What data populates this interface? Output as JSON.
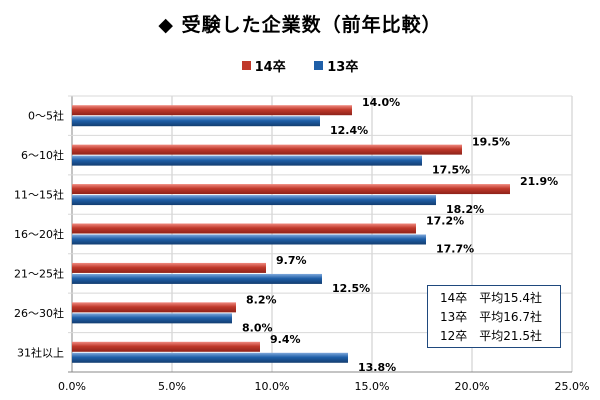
{
  "chart_data": {
    "type": "bar",
    "orientation": "horizontal",
    "title": "◆ 受験した企業数（前年比較）",
    "categories": [
      "0～5社",
      "6～10社",
      "11～15社",
      "16～20社",
      "21～25社",
      "26～30社",
      "31社以上"
    ],
    "series": [
      {
        "name": "14卒",
        "color": "#c0392b",
        "values": [
          14.0,
          19.5,
          21.9,
          17.2,
          9.7,
          8.2,
          9.4
        ],
        "labels": [
          "14.0%",
          "19.5%",
          "21.9%",
          "17.2%",
          "9.7%",
          "8.2%",
          "9.4%"
        ]
      },
      {
        "name": "13卒",
        "color": "#1f5fa8",
        "values": [
          12.4,
          17.5,
          18.2,
          17.7,
          12.5,
          8.0,
          13.8
        ],
        "labels": [
          "12.4%",
          "17.5%",
          "18.2%",
          "17.7%",
          "12.5%",
          "8.0%",
          "13.8%"
        ]
      }
    ],
    "xlim": [
      0,
      25
    ],
    "xticks": [
      0,
      5,
      10,
      15,
      20,
      25
    ],
    "xtick_labels": [
      "0.0%",
      "5.0%",
      "10.0%",
      "15.0%",
      "20.0%",
      "25.0%"
    ],
    "grid": true,
    "legend_position": "top-center"
  },
  "averages": [
    {
      "group": "14卒",
      "text": "平均15.4社"
    },
    {
      "group": "13卒",
      "text": "平均16.7社"
    },
    {
      "group": "12卒",
      "text": "平均21.5社"
    }
  ]
}
